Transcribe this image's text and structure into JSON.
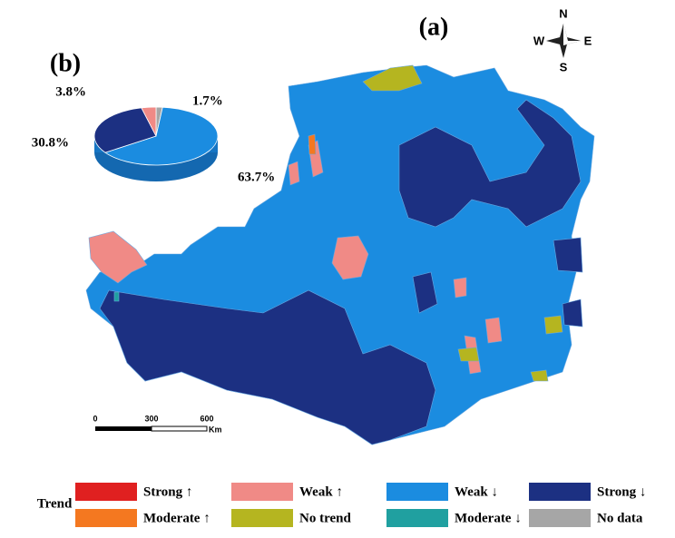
{
  "map": {
    "panel_label": "(a)",
    "compass": {
      "north": "N",
      "south": "S",
      "east": "E",
      "west": "W"
    },
    "scale_bar": {
      "ticks": [
        "0",
        "300",
        "600"
      ],
      "unit": "Km"
    }
  },
  "chart_data": {
    "type": "pie",
    "panel_label": "(b)",
    "categories": [
      "No data",
      "Weak ↓",
      "Strong ↓",
      "Weak ↑"
    ],
    "values": [
      1.7,
      63.7,
      30.8,
      3.8
    ],
    "value_labels": [
      "1.7%",
      "63.7%",
      "30.8%",
      "3.8%"
    ],
    "colors": [
      "#a6a6a6",
      "#1b8ce0",
      "#1c3082",
      "#f08a86"
    ]
  },
  "legend": {
    "title": "Trend",
    "items": [
      {
        "label": "Strong ↑",
        "color": "#e02020"
      },
      {
        "label": "Weak ↑",
        "color": "#f08a86"
      },
      {
        "label": "Weak ↓",
        "color": "#1b8ce0"
      },
      {
        "label": "Strong ↓",
        "color": "#1c3082"
      },
      {
        "label": "Moderate ↑",
        "color": "#f47820"
      },
      {
        "label": "No trend",
        "color": "#b5b520"
      },
      {
        "label": "Moderate ↓",
        "color": "#20a0a0"
      },
      {
        "label": "No data",
        "color": "#a6a6a6"
      }
    ]
  }
}
